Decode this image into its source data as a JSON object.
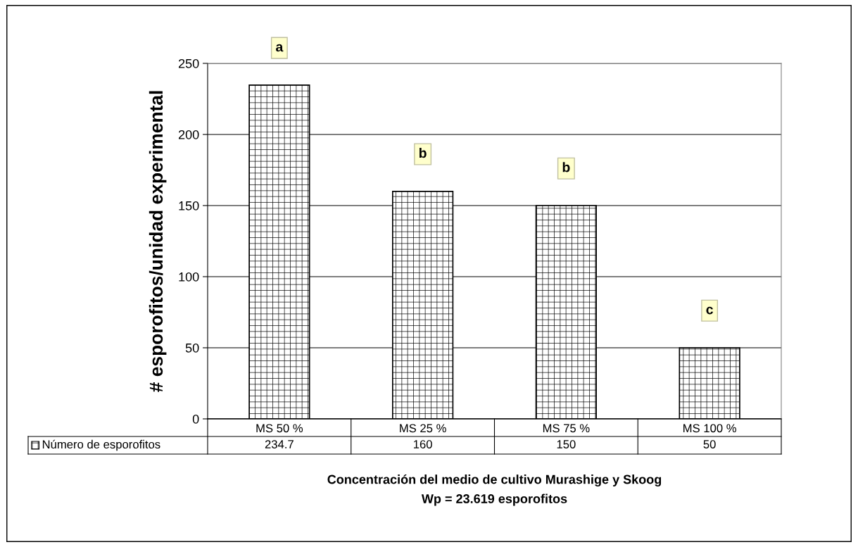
{
  "chart_data": {
    "type": "bar",
    "categories": [
      "MS 50 %",
      "MS 25 %",
      "MS 75 %",
      "MS 100 %"
    ],
    "series": [
      {
        "name": "Número de esporofitos",
        "color": "#000000",
        "values": [
          234.7,
          160,
          150,
          50
        ]
      }
    ],
    "ylabel": "# esporofitos/unidad experimental",
    "xlabel": "Concentración del medio de cultivo Murashige y Skoog",
    "annotations": [
      {
        "text": "a",
        "x": "MS 50 %",
        "y": 234.7
      },
      {
        "text": "b",
        "x": "MS 25 %",
        "y": 160
      },
      {
        "text": "b",
        "x": "MS 75 %",
        "y": 150
      },
      {
        "text": "c",
        "x": "MS 100 %",
        "y": 50
      },
      "Wp = 23.619 esporofitos"
    ],
    "ylim": [
      0,
      250
    ],
    "yticks": [
      0,
      50,
      100,
      150,
      200,
      250
    ],
    "grid": "y",
    "data_labels": true
  }
}
